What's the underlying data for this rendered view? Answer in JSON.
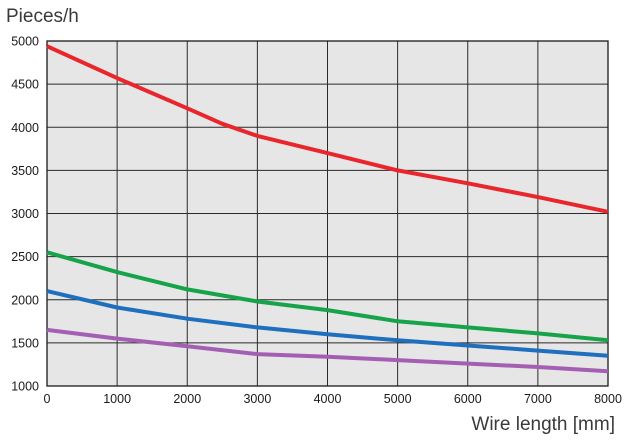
{
  "chart_data": {
    "type": "line",
    "title": "",
    "xlabel": "Wire length [mm]",
    "ylabel": "Pieces/h",
    "xlim": [
      0,
      8000
    ],
    "ylim": [
      1000,
      5000
    ],
    "x_ticks": [
      "0",
      "1000",
      "2000",
      "3000",
      "4000",
      "5000",
      "6000",
      "7000",
      "8000"
    ],
    "y_ticks": [
      "1000",
      "1500",
      "2000",
      "2500",
      "3000",
      "3500",
      "4000",
      "4500",
      "5000"
    ],
    "grid": true,
    "legend": "none",
    "background_color": "#e6e6e6",
    "series": [
      {
        "color": "#e8262c",
        "x": [
          0,
          1000,
          2000,
          2500,
          3000,
          4000,
          5000,
          6000,
          7000,
          8000
        ],
        "y": [
          4940,
          4570,
          4220,
          4040,
          3900,
          3700,
          3500,
          3350,
          3190,
          3020
        ]
      },
      {
        "color": "#17a34a",
        "x": [
          0,
          1000,
          2000,
          3000,
          4000,
          5000,
          6000,
          7000,
          8000
        ],
        "y": [
          2550,
          2320,
          2120,
          1980,
          1880,
          1750,
          1680,
          1610,
          1530
        ]
      },
      {
        "color": "#1f6fbf",
        "x": [
          0,
          1000,
          2000,
          3000,
          4000,
          5000,
          6000,
          7000,
          8000
        ],
        "y": [
          2100,
          1910,
          1780,
          1680,
          1600,
          1530,
          1470,
          1410,
          1350
        ]
      },
      {
        "color": "#a45fb3",
        "x": [
          0,
          1000,
          2000,
          3000,
          4000,
          5000,
          6000,
          7000,
          8000
        ],
        "y": [
          1650,
          1550,
          1460,
          1370,
          1340,
          1300,
          1260,
          1220,
          1170
        ]
      }
    ]
  }
}
